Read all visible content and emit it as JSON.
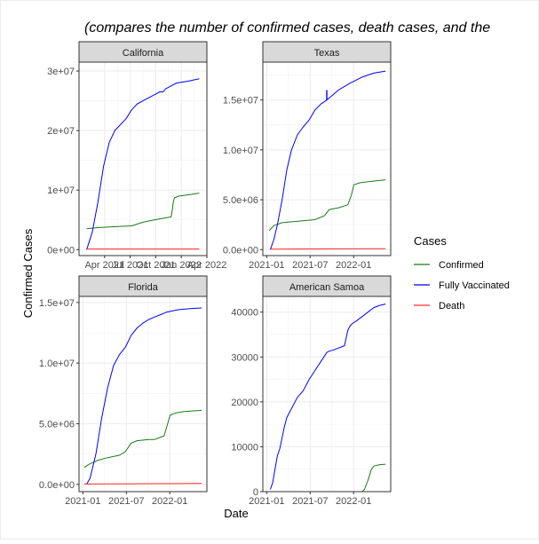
{
  "title": "(compares the number of confirmed cases, death cases, and the",
  "xlabel": "Date",
  "ylabel": "Confirmed Cases",
  "legend": {
    "title": "Cases",
    "position": "right",
    "entries": [
      {
        "name": "Confirmed",
        "color": "#1a7a1a"
      },
      {
        "name": "Fully Vaccinated",
        "color": "#0000ff"
      },
      {
        "name": "Death",
        "color": "#ff2a2a"
      }
    ]
  },
  "chart_data": [
    {
      "type": "line",
      "panel": "California",
      "xtick_labels": [
        "Apr 2021",
        "Jul 2021",
        "Oct 2021",
        "Jan 2022",
        "Apr 2022"
      ],
      "ytick_labels": [
        "0e+00",
        "1e+07",
        "2e+07",
        "3e+07"
      ],
      "yticks": [
        0,
        10000000,
        20000000,
        30000000
      ],
      "ylim": [
        -1000000,
        31500000
      ],
      "grid": true,
      "series": [
        {
          "name": "Confirmed",
          "x": [
            0,
            0.1,
            0.3,
            0.4,
            0.5,
            0.6,
            0.75,
            0.76,
            0.77,
            0.78,
            0.82,
            0.9,
            1
          ],
          "y": [
            3500000,
            3700000,
            3900000,
            4000000,
            4600000,
            5000000,
            5500000,
            6500000,
            8000000,
            8700000,
            9000000,
            9200000,
            9500000
          ]
        },
        {
          "name": "Fully Vaccinated",
          "x": [
            0,
            0.05,
            0.1,
            0.15,
            0.2,
            0.25,
            0.3,
            0.35,
            0.4,
            0.45,
            0.5,
            0.55,
            0.6,
            0.65,
            0.68,
            0.7,
            0.75,
            0.8,
            0.9,
            1
          ],
          "y": [
            0,
            3000000,
            8000000,
            14000000,
            18000000,
            20000000,
            21000000,
            22000000,
            23500000,
            24500000,
            25000000,
            25500000,
            26000000,
            26500000,
            26500000,
            27000000,
            27500000,
            28000000,
            28300000,
            28700000
          ]
        },
        {
          "name": "Death",
          "x": [
            0,
            1
          ],
          "y": [
            100000,
            100000
          ]
        }
      ]
    },
    {
      "type": "line",
      "panel": "Texas",
      "xtick_labels": [
        "2021-01",
        "2021-07",
        "2022-01"
      ],
      "ytick_labels": [
        "0.0e+00",
        "5.0e+06",
        "1.0e+07",
        "1.5e+07"
      ],
      "yticks": [
        0,
        5000000,
        10000000,
        15000000
      ],
      "ylim": [
        -600000,
        18800000
      ],
      "grid": true,
      "series": [
        {
          "name": "Confirmed",
          "x": [
            0.01,
            0.05,
            0.12,
            0.3,
            0.4,
            0.48,
            0.52,
            0.6,
            0.68,
            0.71,
            0.73,
            0.78,
            0.85,
            1
          ],
          "y": [
            1900000,
            2400000,
            2700000,
            2900000,
            3000000,
            3400000,
            4000000,
            4200000,
            4500000,
            5500000,
            6500000,
            6700000,
            6800000,
            7000000
          ]
        },
        {
          "name": "Fully Vaccinated",
          "x": [
            0.02,
            0.05,
            0.08,
            0.12,
            0.16,
            0.2,
            0.25,
            0.3,
            0.35,
            0.4,
            0.45,
            0.5,
            0.52,
            0.55,
            0.6,
            0.7,
            0.8,
            0.9,
            1
          ],
          "y": [
            0,
            1000000,
            2500000,
            5000000,
            8000000,
            10000000,
            11500000,
            12300000,
            13000000,
            14000000,
            14600000,
            15000000,
            15200000,
            15500000,
            16000000,
            16700000,
            17300000,
            17700000,
            17900000
          ]
        },
        {
          "name": "Death",
          "x": [
            0.02,
            1
          ],
          "y": [
            50000,
            90000
          ]
        }
      ]
    },
    {
      "type": "line",
      "panel": "Florida",
      "xtick_labels": [
        "2021-01",
        "2021-07",
        "2022-01"
      ],
      "ytick_labels": [
        "0.0e+00",
        "5.0e+06",
        "1.0e+07",
        "1.5e+07"
      ],
      "yticks": [
        0,
        5000000,
        10000000,
        15000000
      ],
      "ylim": [
        -600000,
        15500000
      ],
      "grid": true,
      "series": [
        {
          "name": "Confirmed",
          "x": [
            0,
            0.05,
            0.12,
            0.2,
            0.3,
            0.35,
            0.4,
            0.45,
            0.55,
            0.6,
            0.68,
            0.71,
            0.73,
            0.78,
            0.85,
            1
          ],
          "y": [
            1400000,
            1700000,
            2000000,
            2200000,
            2400000,
            2700000,
            3400000,
            3600000,
            3700000,
            3700000,
            4000000,
            5000000,
            5700000,
            5900000,
            6000000,
            6100000
          ]
        },
        {
          "name": "Fully Vaccinated",
          "x": [
            0.02,
            0.05,
            0.1,
            0.15,
            0.2,
            0.25,
            0.3,
            0.35,
            0.4,
            0.45,
            0.5,
            0.55,
            0.6,
            0.65,
            0.7,
            0.8,
            0.9,
            1
          ],
          "y": [
            0,
            500000,
            2500000,
            5500000,
            8000000,
            9800000,
            10700000,
            11300000,
            12300000,
            12900000,
            13300000,
            13600000,
            13800000,
            14000000,
            14200000,
            14400000,
            14500000,
            14550000
          ]
        },
        {
          "name": "Death",
          "x": [
            0,
            1
          ],
          "y": [
            30000,
            70000
          ]
        }
      ]
    },
    {
      "type": "line",
      "panel": "American Samoa",
      "xtick_labels": [
        "2021-01",
        "2021-07",
        "2022-01"
      ],
      "ytick_labels": [
        "0",
        "10000",
        "20000",
        "30000",
        "40000"
      ],
      "yticks": [
        0,
        10000,
        20000,
        30000,
        40000
      ],
      "ylim": [
        -1.5,
        43500
      ],
      "grid": true,
      "series": [
        {
          "name": "Confirmed",
          "x": [
            0,
            0.75,
            0.8,
            0.82,
            0.85,
            0.88,
            0.9,
            0.95,
            1
          ],
          "y": [
            0,
            0,
            0,
            500,
            2500,
            5000,
            5700,
            6000,
            6100
          ]
        },
        {
          "name": "Fully Vaccinated",
          "x": [
            0.02,
            0.04,
            0.06,
            0.08,
            0.1,
            0.12,
            0.14,
            0.16,
            0.2,
            0.25,
            0.3,
            0.35,
            0.4,
            0.45,
            0.5,
            0.52,
            0.55,
            0.6,
            0.65,
            0.68,
            0.7,
            0.72,
            0.75,
            0.8,
            0.85,
            0.9,
            0.95,
            1
          ],
          "y": [
            500,
            2000,
            5000,
            8000,
            9500,
            12000,
            14500,
            16500,
            18500,
            21000,
            22500,
            25000,
            27000,
            29000,
            31000,
            31300,
            31500,
            32000,
            32500,
            36000,
            37000,
            37500,
            38000,
            39000,
            40000,
            41000,
            41500,
            41800
          ]
        },
        {
          "name": "Death",
          "x": [
            0,
            1
          ],
          "y": [
            0,
            0
          ]
        }
      ]
    }
  ]
}
